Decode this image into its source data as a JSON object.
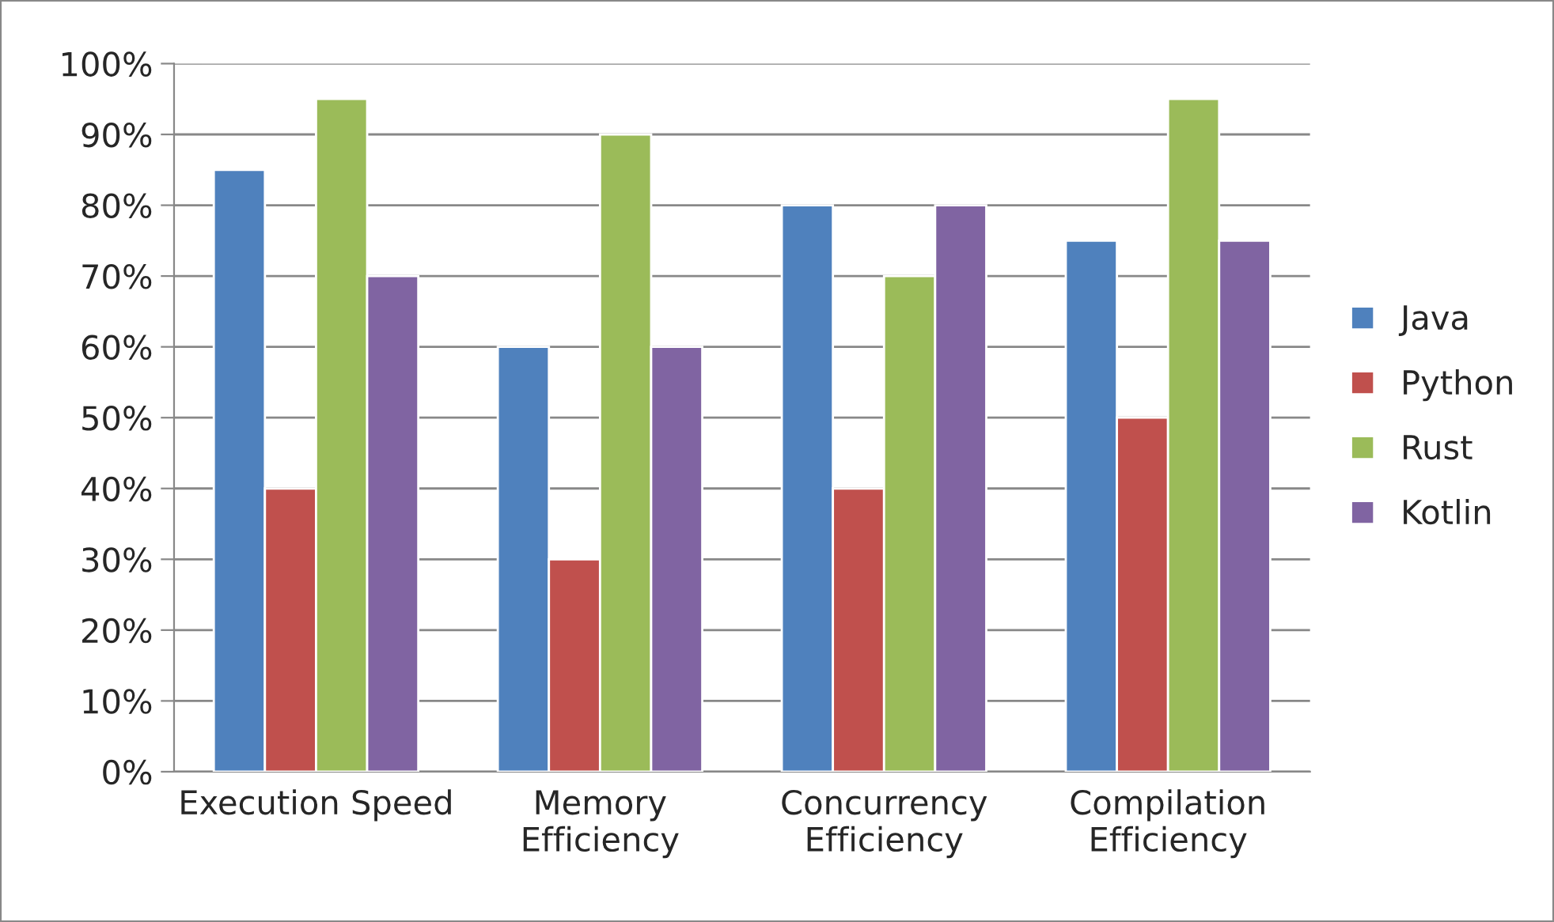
{
  "chart_data": {
    "type": "bar",
    "categories": [
      "Execution Speed",
      "Memory\nEfficiency",
      "Concurrency\nEfficiency",
      "Compilation\nEfficiency"
    ],
    "series": [
      {
        "name": "Java",
        "color": "#4f81bd",
        "values": [
          85,
          60,
          80,
          75
        ]
      },
      {
        "name": "Python",
        "color": "#c0504d",
        "values": [
          40,
          30,
          40,
          50
        ]
      },
      {
        "name": "Rust",
        "color": "#9bbb59",
        "values": [
          95,
          90,
          70,
          95
        ]
      },
      {
        "name": "Kotlin",
        "color": "#8064a2",
        "values": [
          70,
          60,
          80,
          75
        ]
      }
    ],
    "ylim": [
      0,
      100
    ],
    "yticks": [
      {
        "value": 0,
        "label": "0%"
      },
      {
        "value": 10,
        "label": "10%"
      },
      {
        "value": 20,
        "label": "20%"
      },
      {
        "value": 30,
        "label": "30%"
      },
      {
        "value": 40,
        "label": "40%"
      },
      {
        "value": 50,
        "label": "50%"
      },
      {
        "value": 60,
        "label": "60%"
      },
      {
        "value": 70,
        "label": "70%"
      },
      {
        "value": 80,
        "label": "80%"
      },
      {
        "value": 90,
        "label": "90%"
      },
      {
        "value": 100,
        "label": "100%"
      }
    ],
    "grid": "y",
    "legend": "right"
  }
}
